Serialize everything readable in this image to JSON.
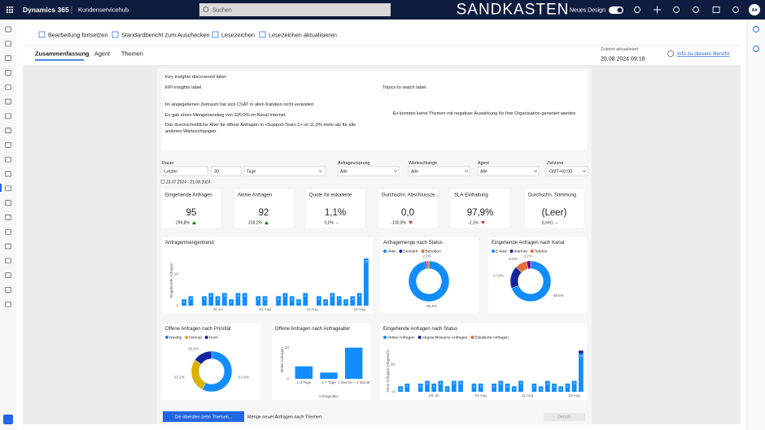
{
  "header": {
    "app": "Dynamics 365",
    "area": "Kundenservicehub",
    "search": "Suchen",
    "environment": "SANDKASTEN",
    "new_design": "Neues Design",
    "avatar": "A#"
  },
  "commands": [
    "Bearbeitung fortsetzen",
    "Standardbericht zum Auschecken",
    "Lesezeichen",
    "Lesezeichen aktualisieren"
  ],
  "tabs": [
    "Zusammenfassung",
    "Agent",
    "Themen"
  ],
  "last_updated": {
    "label": "Zuletzt aktualisiert",
    "value": "20.08.2024 09:18"
  },
  "info_link": "Info zu diesem Bericht",
  "insights": {
    "title": "Key insights discovered label",
    "kpi_title": "KPI insights label",
    "topics_title": "Topics to watch label",
    "kpi_items": [
      "Im angegebenen Zeitraum hat sich CSAT in allen Kanälen nicht verändert.",
      "Es gab einen Mengenanstieg von 325,0% im Kanal Internet.",
      "Das durchschnittliche Alter für offene Anfragen in <Support-Team 1> ist 11,0% mehr als für alle anderen Warteschlangen."
    ],
    "topics_text": "Es konnten keine Themen mit negativer Auswirkung für Ihre Organisation generiert werden"
  },
  "filters": {
    "duration": {
      "label": "Dauer",
      "mode": "Letzter",
      "count": "30",
      "unit": "Tage",
      "range": "23.07.2024 - 21.08.2024"
    },
    "dropdowns": [
      {
        "label": "Anfrageursprung",
        "value": "Alle"
      },
      {
        "label": "Warteschlange",
        "value": "Alle"
      },
      {
        "label": "Agent",
        "value": "Alle"
      },
      {
        "label": "Zeitzone",
        "value": "GMT+02:00"
      }
    ]
  },
  "kpis": [
    {
      "title": "Eingehende Anfragen",
      "value": "95",
      "change": "299,8%",
      "trend": "up"
    },
    {
      "title": "Aktive Anfragen",
      "value": "92",
      "change": "318,2%",
      "trend": "up"
    },
    {
      "title": "Quote für eskalierte",
      "value": "1,1%",
      "change": "0,0%",
      "marker": "--"
    },
    {
      "title": "Durchschn. Abschlussze...",
      "value": "0,0",
      "change": "-100,0%",
      "trend": "down"
    },
    {
      "title": "SLA-Einhaltung",
      "value": "97,9%",
      "change": "-2,1%",
      "trend": "down"
    },
    {
      "title": "Durchschn. Stimmung",
      "value": "(Leer)",
      "change": "(Leer)",
      "marker": "--"
    }
  ],
  "chart_data": [
    {
      "type": "bar",
      "title": "Anfragenmengentrend",
      "y_label": "Eingehende Anfragen",
      "color": "#118dff",
      "data_labels": true,
      "categories": [
        null,
        null,
        null,
        null,
        null,
        "28 Jul",
        null,
        null,
        null,
        null,
        null,
        null,
        "04 Aug",
        null,
        null,
        null,
        null,
        null,
        null,
        "11 Aug",
        null,
        null,
        null,
        null,
        null,
        null,
        "18 Aug",
        null
      ],
      "values": [
        2,
        3,
        0,
        3,
        4,
        3,
        4,
        2,
        4,
        4,
        0,
        3,
        3,
        0,
        3,
        4,
        3,
        2,
        4,
        0,
        3,
        2,
        4,
        3,
        2,
        3,
        4,
        15
      ],
      "ylim": [
        0,
        16
      ],
      "yticks": [
        0,
        10
      ]
    },
    {
      "type": "donut",
      "title": "Anfragemenge nach Status",
      "categories": [
        "Aktiv",
        "Storniert",
        "Behoben"
      ],
      "values": [
        96.6,
        1.3,
        2.1
      ],
      "value_labels": [
        "96,6%",
        null,
        "2,1%"
      ],
      "colors": [
        "#118dff",
        "#12239e",
        "#e66c37"
      ]
    },
    {
      "type": "donut",
      "title": "Eingehende Anfragen nach Kanal",
      "categories": [
        "E-Mail",
        "Internet",
        "Telefon",
        null
      ],
      "values": [
        69.5,
        17.9,
        9.5,
        3.2
      ],
      "value_labels": [
        "69,5%",
        "17,9%",
        "9,5%",
        "3,2%"
      ],
      "colors": [
        "#118dff",
        "#12239e",
        "#e66c37",
        "#6b007b"
      ]
    },
    {
      "type": "donut",
      "title": "Offene Anfragen nach Priorität",
      "categories": [
        "Niedrig",
        "Normal",
        "Hoch"
      ],
      "values": [
        57.6,
        27.2,
        15.2
      ],
      "value_labels": [
        "57,6%",
        "27,2%",
        "15,2%"
      ],
      "colors": [
        "#118dff",
        "#d9b300",
        "#12239e"
      ]
    },
    {
      "type": "bar",
      "title": "Offene Anfragen nach Anfragealter",
      "y_label": "Aktive Anfragen",
      "x_label": "Anfragealter",
      "color": "#118dff",
      "categories": [
        "1-3 Tage",
        "4-7 Tage",
        "1 Woche – 1 Monat"
      ],
      "values": [
        4,
        2,
        10
      ],
      "ylim": [
        0,
        12
      ],
      "yticks": [
        0,
        10
      ]
    },
    {
      "type": "stacked_bar",
      "title": "Eingehende Anfragen nach Status",
      "y_label": "Neue Anfragen (Abgeschl...",
      "data_labels": true,
      "categories": [
        null,
        null,
        null,
        null,
        null,
        "28 Jul",
        null,
        null,
        null,
        null,
        null,
        null,
        "04 Aug",
        null,
        null,
        null,
        null,
        null,
        null,
        "11 Aug",
        null,
        null,
        null,
        null,
        null,
        null,
        "18 Aug",
        null
      ],
      "series": [
        {
          "name": "Aktive Anfragen",
          "color": "#118dff",
          "values": [
            2,
            3,
            0,
            3,
            4,
            3,
            4,
            2,
            4,
            4,
            0,
            3,
            3,
            0,
            3,
            4,
            3,
            2,
            4,
            0,
            3,
            2,
            4,
            3,
            2,
            3,
            4,
            14
          ]
        },
        {
          "name": "Abgeschlossene Anfragen",
          "color": "#12239e",
          "values": [
            0,
            0,
            0,
            0,
            0,
            0,
            0,
            0,
            0,
            0,
            0,
            0,
            0,
            0,
            0,
            0,
            0,
            0,
            0,
            0,
            0,
            0,
            0,
            0,
            0,
            0,
            0,
            1
          ]
        },
        {
          "name": "Eskalierte Anfragen",
          "color": "#e66c37",
          "values": [
            0,
            0,
            0,
            0,
            0,
            0,
            0,
            0,
            0,
            0,
            0,
            0,
            0,
            0,
            0,
            0,
            0,
            0,
            0,
            0,
            0,
            0,
            0,
            0,
            0,
            0,
            0,
            0
          ]
        }
      ],
      "ylim": [
        0,
        16
      ],
      "yticks": [
        0,
        10
      ]
    }
  ],
  "bottom": {
    "button": "Die obersten zehn Themen...",
    "chart_title": "Menge neuer Anfragen nach Themen",
    "details": "Details"
  }
}
